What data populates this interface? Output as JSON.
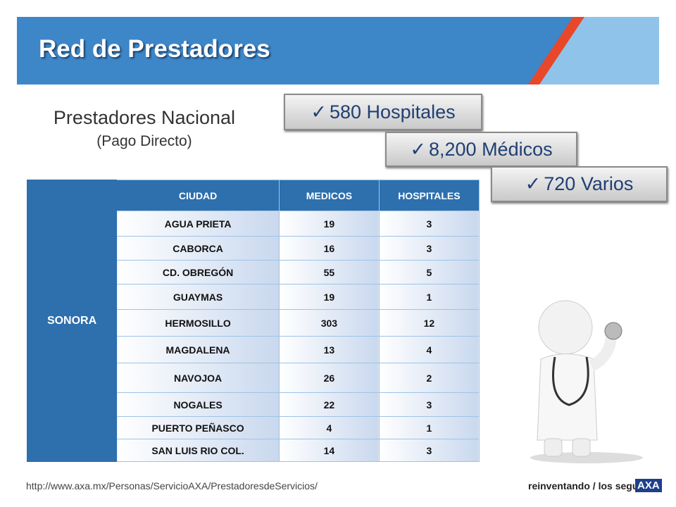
{
  "header": {
    "title": "Red de Prestadores"
  },
  "subtitle": {
    "line1": "Prestadores Nacional",
    "line2": "(Pago Directo)"
  },
  "badges": [
    "580 Hospitales",
    "8,200 Médicos",
    "720 Varios"
  ],
  "table": {
    "state": "SONORA",
    "columns": [
      "CIUDAD",
      "MEDICOS",
      "HOSPITALES"
    ],
    "rows": [
      [
        "AGUA PRIETA",
        "19",
        "3"
      ],
      [
        "CABORCA",
        "16",
        "3"
      ],
      [
        "CD. OBREGÓN",
        "55",
        "5"
      ],
      [
        "GUAYMAS",
        "19",
        "1"
      ],
      [
        "HERMOSILLO",
        "303",
        "12"
      ],
      [
        "MAGDALENA",
        "13",
        "4"
      ],
      [
        "NAVOJOA",
        "26",
        "2"
      ],
      [
        "NOGALES",
        "22",
        "3"
      ],
      [
        "PUERTO PEÑASCO",
        "4",
        "1"
      ],
      [
        "SAN LUIS RIO COL.",
        "14",
        "3"
      ]
    ]
  },
  "footer": {
    "url": "http://www.axa.mx/Personas/ServicioAXA/PrestadoresdeServicios/",
    "logo": "reinventando / los seguros",
    "brand": "AXA"
  }
}
